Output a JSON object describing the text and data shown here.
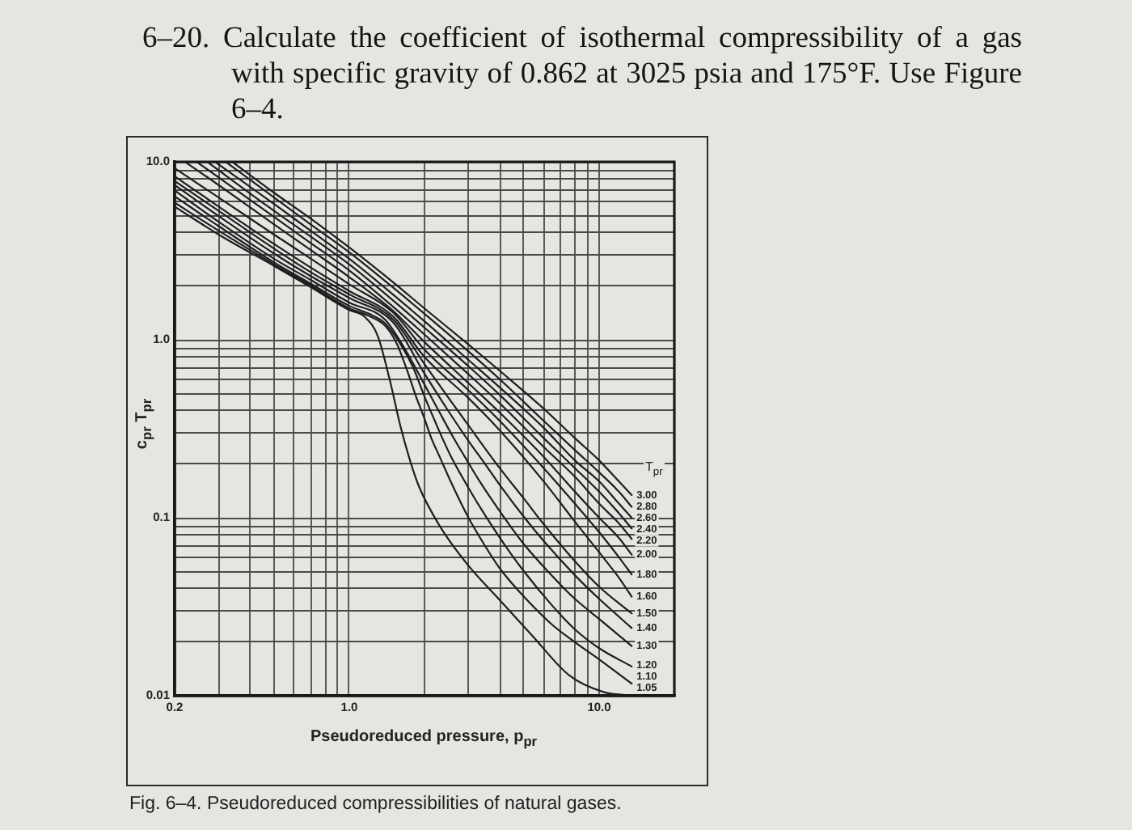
{
  "chart_data": {
    "type": "line",
    "title": "6–20. Calculate the coefficient of isothermal compressibility of a gas with specific gravity of 0.862 at 3025 psia and 175°F. Use Figure 6–4.",
    "xlabel": "Pseudoreduced pressure, p$_{pr}$",
    "ylabel": "c$_{pr}$ T$_{pr}$",
    "legend_title": "T$_{pr}$",
    "annotations": [
      "Fig. 6–4. Pseudoreduced compressibilities of natural gases."
    ],
    "log": "xy",
    "grid": true,
    "marker": "none",
    "xlim": [
      0.2,
      20
    ],
    "xticks": [
      0.2,
      {
        "value": 0.3,
        "label": null
      },
      {
        "value": 0.4,
        "label": null
      },
      {
        "value": 0.5,
        "label": null
      },
      {
        "value": 0.6,
        "label": null
      },
      {
        "value": 0.7,
        "label": null
      },
      {
        "value": 0.8,
        "label": null
      },
      {
        "value": 0.9,
        "label": null
      },
      {
        "value": 1,
        "label": "1.0"
      },
      {
        "value": 2,
        "label": null
      },
      {
        "value": 3,
        "label": null
      },
      {
        "value": 4,
        "label": null
      },
      {
        "value": 5,
        "label": null
      },
      {
        "value": 6,
        "label": null
      },
      {
        "value": 7,
        "label": null
      },
      {
        "value": 8,
        "label": null
      },
      {
        "value": 9,
        "label": null
      },
      {
        "value": 10,
        "label": "10.0"
      }
    ],
    "ylim": [
      0.01,
      10
    ],
    "yticks": [
      0.01,
      {
        "value": 0.02,
        "label": null
      },
      {
        "value": 0.03,
        "label": null
      },
      {
        "value": 0.04,
        "label": null
      },
      {
        "value": 0.05,
        "label": null
      },
      {
        "value": 0.06,
        "label": null
      },
      {
        "value": 0.07,
        "label": null
      },
      {
        "value": 0.08,
        "label": null
      },
      {
        "value": 0.09,
        "label": null
      },
      0.1,
      {
        "value": 0.2,
        "label": null
      },
      {
        "value": 0.3,
        "label": null
      },
      {
        "value": 0.4,
        "label": null
      },
      {
        "value": 0.5,
        "label": null
      },
      {
        "value": 0.6,
        "label": null
      },
      {
        "value": 0.7,
        "label": null
      },
      {
        "value": 0.8,
        "label": null
      },
      {
        "value": 0.9,
        "label": null
      },
      {
        "value": 1,
        "label": "1.0"
      },
      {
        "value": 2,
        "label": null
      },
      {
        "value": 3,
        "label": null
      },
      {
        "value": 4,
        "label": null
      },
      {
        "value": 5,
        "label": null
      },
      {
        "value": 6,
        "label": null
      },
      {
        "value": 7,
        "label": null
      },
      {
        "value": 8,
        "label": null
      },
      {
        "value": 9,
        "label": null
      },
      {
        "value": 10,
        "label": "10.0"
      }
    ],
    "series": [
      {
        "name": "3.00",
        "color": "#1e1e1e",
        "x": [
          0.34,
          0.5,
          0.7,
          1,
          1.5,
          2,
          3,
          4,
          6,
          8,
          10,
          12,
          13.5
        ],
        "values": [
          10,
          6.7,
          4.8,
          3.3,
          2.1,
          1.5,
          0.94,
          0.67,
          0.41,
          0.28,
          0.21,
          0.16,
          0.134
        ]
      },
      {
        "name": "2.80",
        "color": "#1e1e1e",
        "x": [
          0.32,
          0.5,
          0.7,
          1,
          1.5,
          2,
          3,
          4,
          6,
          8,
          10,
          12,
          13.5
        ],
        "values": [
          10,
          6.3,
          4.45,
          3.1,
          1.96,
          1.4,
          0.86,
          0.6,
          0.35,
          0.24,
          0.18,
          0.14,
          0.115
        ]
      },
      {
        "name": "2.60",
        "color": "#1e1e1e",
        "x": [
          0.29,
          0.5,
          0.7,
          1,
          1.5,
          2,
          3,
          4,
          6,
          8,
          10,
          12,
          13.5
        ],
        "values": [
          10,
          5.8,
          4.1,
          2.85,
          1.79,
          1.27,
          0.77,
          0.54,
          0.32,
          0.21,
          0.16,
          0.12,
          0.1
        ]
      },
      {
        "name": "2.40",
        "color": "#1e1e1e",
        "x": [
          0.27,
          0.5,
          0.7,
          1,
          1.5,
          2,
          3,
          4,
          6,
          8,
          10,
          12,
          13.5
        ],
        "values": [
          10,
          5.3,
          3.8,
          2.65,
          1.66,
          1.17,
          0.71,
          0.49,
          0.28,
          0.19,
          0.14,
          0.106,
          0.087
        ]
      },
      {
        "name": "2.20",
        "color": "#1e1e1e",
        "x": [
          0.245,
          0.5,
          0.7,
          1,
          1.5,
          2,
          3,
          4,
          6,
          8,
          10,
          12,
          13.5
        ],
        "values": [
          10,
          4.9,
          3.5,
          2.45,
          1.53,
          1.07,
          0.64,
          0.44,
          0.25,
          0.17,
          0.12,
          0.093,
          0.076
        ]
      },
      {
        "name": "2.00",
        "color": "#1e1e1e",
        "x": [
          0.22,
          0.3,
          0.5,
          0.7,
          1,
          1.5,
          2,
          3,
          4,
          6,
          8,
          10,
          12,
          13.5
        ],
        "values": [
          10,
          7.4,
          4.45,
          3.2,
          2.25,
          1.45,
          0.97,
          0.57,
          0.39,
          0.22,
          0.14,
          0.1,
          0.077,
          0.062
        ]
      },
      {
        "name": "1.80",
        "color": "#1e1e1e",
        "x": [
          0.2,
          0.3,
          0.5,
          0.7,
          1,
          1.5,
          2,
          3,
          4,
          6,
          8,
          10,
          12,
          13.5
        ],
        "values": [
          9.2,
          6.3,
          3.9,
          2.86,
          2.05,
          1.42,
          0.88,
          0.52,
          0.35,
          0.19,
          0.12,
          0.083,
          0.06,
          0.048
        ]
      },
      {
        "name": "1.60",
        "color": "#1e1e1e",
        "x": [
          0.2,
          0.3,
          0.5,
          0.7,
          1,
          1.5,
          2,
          3,
          4,
          6,
          8,
          10,
          12,
          13.5
        ],
        "values": [
          8.3,
          5.6,
          3.45,
          2.55,
          1.88,
          1.35,
          0.8,
          0.47,
          0.31,
          0.16,
          0.095,
          0.064,
          0.046,
          0.036
        ]
      },
      {
        "name": "1.50",
        "color": "#1e1e1e",
        "x": [
          0.2,
          0.3,
          0.5,
          0.7,
          1,
          1.5,
          2,
          2.5,
          3,
          4,
          5,
          6,
          8,
          10,
          13.5
        ],
        "values": [
          7.8,
          5.3,
          3.25,
          2.4,
          1.8,
          1.3,
          0.73,
          0.47,
          0.33,
          0.19,
          0.128,
          0.092,
          0.057,
          0.041,
          0.029
        ]
      },
      {
        "name": "1.40",
        "color": "#1e1e1e",
        "x": [
          0.2,
          0.3,
          0.5,
          0.7,
          1,
          1.5,
          2,
          2.5,
          3,
          3.5,
          4,
          5,
          6,
          8,
          10,
          13.5
        ],
        "values": [
          7.4,
          4.95,
          3.05,
          2.28,
          1.72,
          1.25,
          0.645,
          0.395,
          0.27,
          0.2,
          0.153,
          0.101,
          0.074,
          0.0475,
          0.035,
          0.024
        ]
      },
      {
        "name": "1.30",
        "color": "#1e1e1e",
        "x": [
          0.2,
          0.3,
          0.5,
          0.7,
          1,
          1.39,
          1.7,
          2,
          2.3,
          2.6,
          2.9,
          3.3,
          4,
          5,
          6.5,
          8,
          10,
          13.5
        ],
        "values": [
          6.9,
          4.6,
          2.85,
          2.17,
          1.62,
          1.3,
          0.85,
          0.56,
          0.39,
          0.285,
          0.22,
          0.163,
          0.109,
          0.071,
          0.047,
          0.035,
          0.027,
          0.019
        ]
      },
      {
        "name": "1.20",
        "color": "#1e1e1e",
        "x": [
          0.2,
          0.3,
          0.5,
          0.7,
          1,
          1.2,
          1.39,
          1.6,
          1.8,
          2,
          2.2,
          2.4,
          2.6,
          3,
          3.5,
          4.2,
          5,
          6.5,
          8,
          10,
          13.5
        ],
        "values": [
          6.4,
          4.35,
          2.72,
          2.07,
          1.55,
          1.4,
          1.24,
          0.95,
          0.7,
          0.48,
          0.35,
          0.265,
          0.21,
          0.147,
          0.103,
          0.07,
          0.05,
          0.032,
          0.0236,
          0.0185,
          0.0146
        ]
      },
      {
        "name": "1.10",
        "color": "#1e1e1e",
        "x": [
          0.2,
          0.3,
          0.5,
          0.7,
          1,
          1.2,
          1.39,
          1.55,
          1.7,
          1.85,
          2,
          2.13,
          2.3,
          2.6,
          3,
          3.4,
          4,
          5,
          6.5,
          8,
          10,
          13.5
        ],
        "values": [
          5.9,
          4.1,
          2.65,
          2.02,
          1.5,
          1.36,
          1.2,
          0.95,
          0.68,
          0.48,
          0.36,
          0.28,
          0.22,
          0.15,
          0.1,
          0.074,
          0.052,
          0.036,
          0.025,
          0.02,
          0.016,
          0.0117
        ]
      },
      {
        "name": "1.05",
        "color": "#1e1e1e",
        "x": [
          0.2,
          0.3,
          0.5,
          0.7,
          1,
          1.15,
          1.3,
          1.45,
          1.6,
          1.75,
          1.9,
          2.3,
          2.96,
          3.96,
          5.36,
          7.6,
          10.4,
          13.5
        ],
        "values": [
          5.6,
          3.9,
          2.6,
          1.98,
          1.47,
          1.35,
          1.05,
          0.6,
          0.33,
          0.21,
          0.15,
          0.09,
          0.055,
          0.035,
          0.022,
          0.013,
          0.0105,
          0.01
        ]
      }
    ]
  }
}
